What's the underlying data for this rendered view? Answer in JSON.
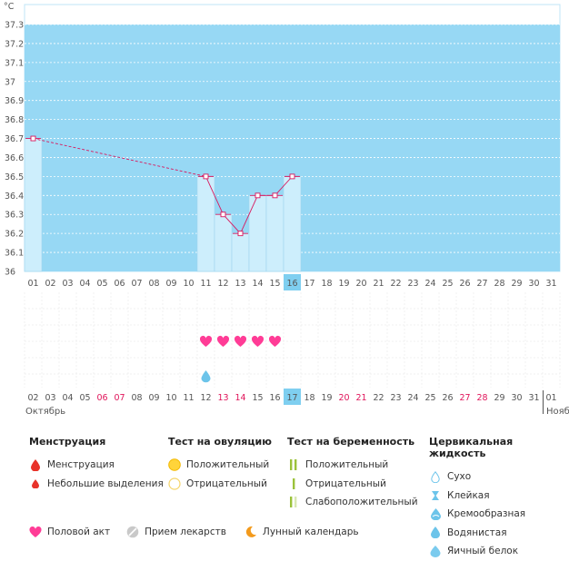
{
  "chart_data": {
    "type": "line",
    "yunit": "°C",
    "ylim": [
      36,
      37.35
    ],
    "yticks": [
      "37.3",
      "37.2",
      "37.1",
      "37",
      "36.9",
      "36.8",
      "36.7",
      "36.6",
      "36.5",
      "36.4",
      "36.3",
      "36.2",
      "36.1",
      "36"
    ],
    "x_cycle_days": [
      "01",
      "02",
      "03",
      "04",
      "05",
      "06",
      "07",
      "08",
      "09",
      "10",
      "11",
      "12",
      "13",
      "14",
      "15",
      "16",
      "17",
      "18",
      "19",
      "20",
      "21",
      "22",
      "23",
      "24",
      "25",
      "26",
      "27",
      "28",
      "29",
      "30",
      "31"
    ],
    "points": [
      {
        "day": 1,
        "temp": 36.7
      },
      {
        "day": 11,
        "temp": 36.5
      },
      {
        "day": 12,
        "temp": 36.3
      },
      {
        "day": 13,
        "temp": 36.2
      },
      {
        "day": 14,
        "temp": 36.4
      },
      {
        "day": 15,
        "temp": 36.4
      },
      {
        "day": 16,
        "temp": 36.5
      }
    ],
    "gap_segment": [
      1,
      11
    ],
    "current_cycle_day": "16"
  },
  "calendar": {
    "dates": [
      "02",
      "03",
      "04",
      "05",
      "06",
      "07",
      "08",
      "09",
      "10",
      "11",
      "12",
      "13",
      "14",
      "15",
      "16",
      "17",
      "18",
      "19",
      "20",
      "21",
      "22",
      "23",
      "24",
      "25",
      "26",
      "27",
      "28",
      "29",
      "30",
      "31",
      "01"
    ],
    "weekend_dates": [
      "06",
      "07",
      "13",
      "14",
      "20",
      "21",
      "27",
      "28"
    ],
    "today": "17",
    "month_start": "Октябрь",
    "month_end": "Нояб",
    "intercourse_days": [
      "12",
      "13",
      "14",
      "15",
      "16"
    ],
    "fluid_days": [
      "12"
    ]
  },
  "legend": {
    "menstruation": {
      "title": "Менструация",
      "items": [
        "Менструация",
        "Небольшие выделения"
      ]
    },
    "ovulation": {
      "title": "Тест на овуляцию",
      "items": [
        "Положительный",
        "Отрицательный"
      ]
    },
    "pregnancy": {
      "title": "Тест на беременность",
      "items": [
        "Положительный",
        "Отрицательный",
        "Слабоположительный"
      ]
    },
    "cervical": {
      "title": "Цервикальная жидкость",
      "items": [
        "Сухо",
        "Клейкая",
        "Кремообразная",
        "Водянистая",
        "Яичный белок"
      ]
    },
    "bottom": [
      "Половой акт",
      "Прием лекарств",
      "Лунный календарь"
    ]
  },
  "colors": {
    "plot_bg": "#97d8f4",
    "bar_fill": "#cdeefc",
    "line": "#d9185e",
    "heart": "#ff3c96",
    "weekend": "#e0145a",
    "today_cell": "#7fcff0",
    "drop_red": "#e8332a",
    "drop_blue": "#6cc4ea",
    "ov_positive": "#ffd43a",
    "ov_negative": "#f5d56a",
    "preg_green": "#9bc23a",
    "moon": "#f39a1c"
  }
}
